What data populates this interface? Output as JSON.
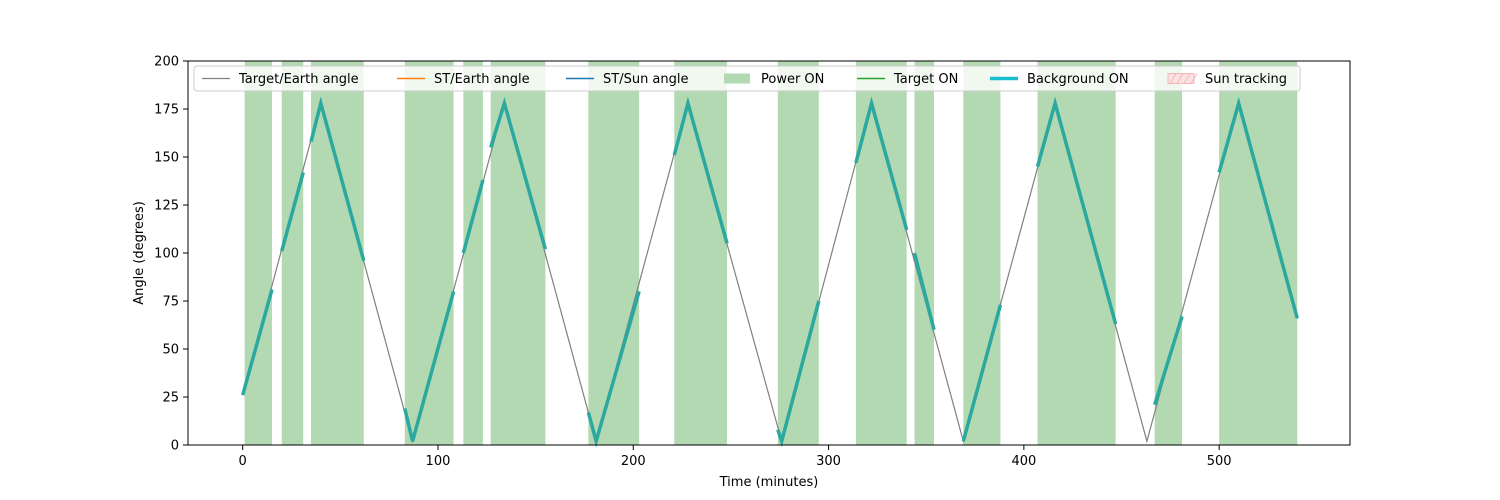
{
  "chart_data": {
    "type": "line",
    "xlabel": "Time (minutes)",
    "ylabel": "Angle (degrees)",
    "xlim": [
      -28,
      567
    ],
    "ylim": [
      0,
      200
    ],
    "xticks": [
      0,
      100,
      200,
      300,
      400,
      500
    ],
    "yticks": [
      0,
      25,
      50,
      75,
      100,
      125,
      150,
      175,
      200
    ],
    "grid": false,
    "legend_placement": "top",
    "series": [
      {
        "name": "Target/Earth angle",
        "color": "#808080",
        "x": [
          0,
          40,
          87,
          134,
          181,
          228,
          276,
          322,
          369,
          416,
          463,
          510,
          540
        ],
        "y": [
          26,
          178,
          2,
          178,
          2,
          178,
          2,
          178,
          2,
          178,
          2,
          178,
          66
        ]
      },
      {
        "name": "ST/Earth angle",
        "color": "#ff7f0e",
        "x": [],
        "y": []
      },
      {
        "name": "ST/Sun angle",
        "color": "#1f77b4",
        "x": [],
        "y": []
      },
      {
        "name": "Target ON",
        "color": "#2ca02c",
        "x": [],
        "y": []
      }
    ],
    "power_on_intervals": {
      "name": "Power ON",
      "color": "#b3d9b3",
      "intervals": [
        [
          1,
          15
        ],
        [
          20,
          31
        ],
        [
          35,
          62
        ],
        [
          83,
          108
        ],
        [
          113,
          123
        ],
        [
          127,
          155
        ],
        [
          177,
          203
        ],
        [
          221,
          248
        ],
        [
          274,
          295
        ],
        [
          314,
          340
        ],
        [
          344,
          354
        ],
        [
          369,
          388
        ],
        [
          407,
          447
        ],
        [
          467,
          481
        ],
        [
          500,
          540
        ]
      ]
    },
    "background_on": {
      "name": "Background ON",
      "color": "#2ba8a0",
      "segments": [
        [
          [
            0,
            26
          ],
          [
            15,
            81
          ]
        ],
        [
          [
            20,
            101
          ],
          [
            31,
            142
          ]
        ],
        [
          [
            35,
            158
          ],
          [
            40,
            178
          ],
          [
            62,
            96
          ]
        ],
        [
          [
            83,
            19
          ],
          [
            87,
            2
          ],
          [
            108,
            80
          ]
        ],
        [
          [
            113,
            100
          ],
          [
            123,
            138
          ]
        ],
        [
          [
            127,
            155
          ],
          [
            134,
            178
          ],
          [
            155,
            102
          ]
        ],
        [
          [
            177,
            17
          ],
          [
            181,
            2
          ],
          [
            203,
            80
          ]
        ],
        [
          [
            221,
            151
          ],
          [
            228,
            178
          ],
          [
            248,
            105
          ]
        ],
        [
          [
            274,
            8
          ],
          [
            276,
            2
          ],
          [
            295,
            75
          ]
        ],
        [
          [
            314,
            147
          ],
          [
            322,
            178
          ],
          [
            340,
            112
          ]
        ],
        [
          [
            344,
            100
          ],
          [
            354,
            60
          ]
        ],
        [
          [
            369,
            2
          ],
          [
            388,
            73
          ]
        ],
        [
          [
            407,
            145
          ],
          [
            416,
            178
          ],
          [
            447,
            63
          ]
        ],
        [
          [
            467,
            21
          ],
          [
            481,
            67
          ]
        ],
        [
          [
            500,
            142
          ],
          [
            510,
            178
          ],
          [
            540,
            66
          ]
        ]
      ]
    },
    "sun_tracking": {
      "name": "Sun tracking",
      "color": "#f4b6b6",
      "intervals": []
    },
    "legend": [
      "Target/Earth angle",
      "ST/Earth angle",
      "ST/Sun angle",
      "Power ON",
      "Target ON",
      "Background ON",
      "Sun tracking"
    ]
  }
}
